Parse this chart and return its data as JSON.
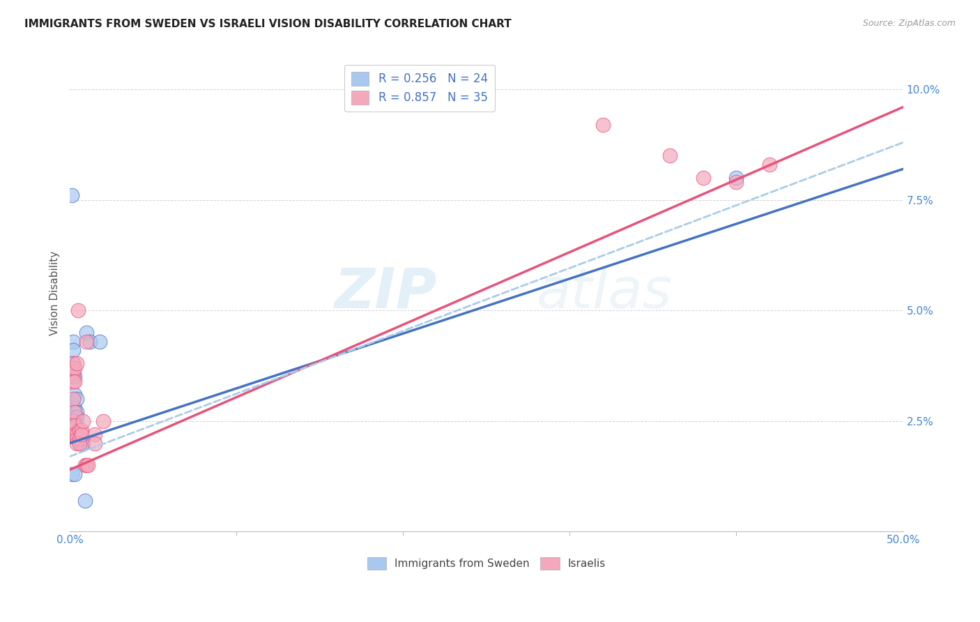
{
  "title": "IMMIGRANTS FROM SWEDEN VS ISRAELI VISION DISABILITY CORRELATION CHART",
  "source": "Source: ZipAtlas.com",
  "ylabel": "Vision Disability",
  "ytick_labels": [
    "2.5%",
    "5.0%",
    "7.5%",
    "10.0%"
  ],
  "ytick_values": [
    0.025,
    0.05,
    0.075,
    0.1
  ],
  "xlim": [
    0.0,
    0.5
  ],
  "ylim": [
    0.0,
    0.108
  ],
  "color_blue": "#A8C8F0",
  "color_pink": "#F4A8BC",
  "color_blue_line": "#4472C4",
  "color_pink_line": "#E8527A",
  "color_dashed_line": "#AACCE8",
  "legend_label1": "Immigrants from Sweden",
  "legend_label2": "Israelis",
  "watermark_zip": "ZIP",
  "watermark_atlas": "atlas",
  "blue_points": [
    [
      0.001,
      0.076
    ],
    [
      0.002,
      0.043
    ],
    [
      0.002,
      0.041
    ],
    [
      0.002,
      0.038
    ],
    [
      0.002,
      0.035
    ],
    [
      0.003,
      0.035
    ],
    [
      0.003,
      0.031
    ],
    [
      0.003,
      0.028
    ],
    [
      0.003,
      0.026
    ],
    [
      0.003,
      0.025
    ],
    [
      0.003,
      0.024
    ],
    [
      0.004,
      0.03
    ],
    [
      0.004,
      0.027
    ],
    [
      0.004,
      0.026
    ],
    [
      0.004,
      0.024
    ],
    [
      0.004,
      0.022
    ],
    [
      0.005,
      0.022
    ],
    [
      0.005,
      0.021
    ],
    [
      0.006,
      0.021
    ],
    [
      0.007,
      0.02
    ],
    [
      0.008,
      0.02
    ],
    [
      0.01,
      0.045
    ],
    [
      0.012,
      0.043
    ],
    [
      0.018,
      0.043
    ],
    [
      0.001,
      0.013
    ],
    [
      0.003,
      0.013
    ],
    [
      0.009,
      0.007
    ],
    [
      0.4,
      0.08
    ]
  ],
  "pink_points": [
    [
      0.001,
      0.023
    ],
    [
      0.001,
      0.022
    ],
    [
      0.002,
      0.038
    ],
    [
      0.002,
      0.036
    ],
    [
      0.002,
      0.034
    ],
    [
      0.002,
      0.03
    ],
    [
      0.002,
      0.025
    ],
    [
      0.003,
      0.037
    ],
    [
      0.003,
      0.034
    ],
    [
      0.003,
      0.027
    ],
    [
      0.003,
      0.024
    ],
    [
      0.003,
      0.022
    ],
    [
      0.004,
      0.038
    ],
    [
      0.004,
      0.022
    ],
    [
      0.004,
      0.021
    ],
    [
      0.004,
      0.02
    ],
    [
      0.005,
      0.05
    ],
    [
      0.006,
      0.023
    ],
    [
      0.006,
      0.021
    ],
    [
      0.006,
      0.02
    ],
    [
      0.007,
      0.023
    ],
    [
      0.007,
      0.022
    ],
    [
      0.008,
      0.025
    ],
    [
      0.009,
      0.015
    ],
    [
      0.01,
      0.043
    ],
    [
      0.01,
      0.015
    ],
    [
      0.011,
      0.015
    ],
    [
      0.015,
      0.022
    ],
    [
      0.015,
      0.02
    ],
    [
      0.02,
      0.025
    ],
    [
      0.32,
      0.092
    ],
    [
      0.36,
      0.085
    ],
    [
      0.38,
      0.08
    ],
    [
      0.4,
      0.079
    ],
    [
      0.42,
      0.083
    ]
  ],
  "blue_line": [
    [
      0.0,
      0.02
    ],
    [
      0.5,
      0.082
    ]
  ],
  "pink_line": [
    [
      0.0,
      0.014
    ],
    [
      0.5,
      0.096
    ]
  ],
  "dashed_line": [
    [
      0.0,
      0.017
    ],
    [
      0.5,
      0.088
    ]
  ]
}
